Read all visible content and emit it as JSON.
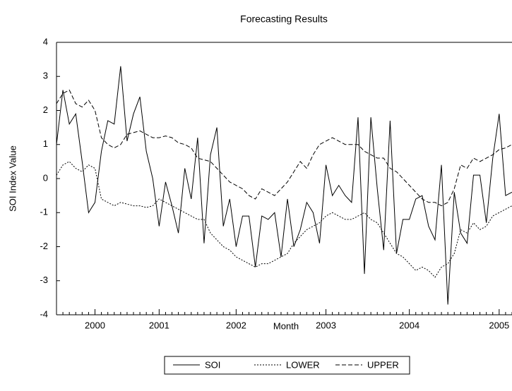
{
  "chart_data": {
    "type": "line",
    "title": "Forecasting Results",
    "xlabel": "Month",
    "ylabel": "SOI Index Value",
    "categories": [
      null,
      null,
      null,
      null,
      null,
      null,
      "2000",
      null,
      null,
      null,
      null,
      null,
      null,
      null,
      null,
      null,
      "2001",
      null,
      null,
      null,
      null,
      null,
      null,
      null,
      null,
      null,
      null,
      null,
      "2002",
      null,
      null,
      null,
      null,
      null,
      null,
      null,
      null,
      null,
      null,
      null,
      null,
      null,
      "2003",
      null,
      null,
      null,
      null,
      null,
      null,
      null,
      null,
      null,
      null,
      null,
      null,
      "2004",
      null,
      null,
      null,
      null,
      null,
      null,
      null,
      null,
      null,
      null,
      null,
      null,
      null,
      "2005",
      null,
      null
    ],
    "series": [
      {
        "name": "SOI",
        "color": "#000000",
        "style": "solid",
        "values": [
          1.0,
          2.6,
          1.6,
          1.9,
          0.5,
          -1.0,
          -0.7,
          0.8,
          1.7,
          1.6,
          3.3,
          1.1,
          1.9,
          2.4,
          0.8,
          0.0,
          -1.4,
          -0.1,
          -0.8,
          -1.6,
          0.3,
          -0.6,
          1.2,
          -1.9,
          0.7,
          1.5,
          -1.4,
          -0.6,
          -2.0,
          -1.1,
          -1.1,
          -2.6,
          -1.1,
          -1.2,
          -1.0,
          -2.3,
          -0.6,
          -2.0,
          -1.5,
          -0.7,
          -1.0,
          -1.9,
          0.4,
          -0.5,
          -0.2,
          -0.5,
          -0.7,
          1.8,
          -2.8,
          1.8,
          -0.3,
          -2.1,
          1.7,
          -2.2,
          -1.2,
          -1.2,
          -0.6,
          -0.5,
          -1.4,
          -1.8,
          0.4,
          -3.7,
          -0.4,
          -1.6,
          -1.9,
          0.1,
          0.1,
          -1.3,
          0.6,
          1.9,
          -0.5,
          -0.4
        ]
      },
      {
        "name": "LOWER",
        "color": "#000000",
        "style": "dotted",
        "values": [
          0.1,
          0.4,
          0.5,
          0.3,
          0.2,
          0.4,
          0.3,
          -0.6,
          -0.7,
          -0.8,
          -0.7,
          -0.75,
          -0.8,
          -0.8,
          -0.85,
          -0.8,
          -0.6,
          -0.7,
          -0.8,
          -0.9,
          -1.0,
          -1.1,
          -1.2,
          -1.2,
          -1.6,
          -1.8,
          -2.0,
          -2.1,
          -2.3,
          -2.4,
          -2.5,
          -2.6,
          -2.5,
          -2.5,
          -2.4,
          -2.3,
          -2.2,
          -1.9,
          -1.7,
          -1.5,
          -1.4,
          -1.3,
          -1.1,
          -1.0,
          -1.1,
          -1.2,
          -1.2,
          -1.1,
          -1.0,
          -1.2,
          -1.3,
          -1.6,
          -1.9,
          -2.2,
          -2.3,
          -2.5,
          -2.7,
          -2.6,
          -2.7,
          -2.9,
          -2.6,
          -2.5,
          -2.2,
          -1.5,
          -1.6,
          -1.3,
          -1.5,
          -1.4,
          -1.1,
          -1.0,
          -0.9,
          -0.8
        ]
      },
      {
        "name": "UPPER",
        "color": "#000000",
        "style": "dashed",
        "values": [
          2.2,
          2.5,
          2.6,
          2.2,
          2.1,
          2.3,
          2.0,
          1.2,
          1.0,
          0.9,
          1.0,
          1.3,
          1.35,
          1.4,
          1.3,
          1.2,
          1.2,
          1.25,
          1.2,
          1.05,
          1.0,
          0.9,
          0.6,
          0.55,
          0.5,
          0.3,
          0.1,
          -0.1,
          -0.2,
          -0.3,
          -0.5,
          -0.6,
          -0.3,
          -0.4,
          -0.5,
          -0.3,
          -0.1,
          0.2,
          0.5,
          0.3,
          0.7,
          1.0,
          1.1,
          1.2,
          1.1,
          1.0,
          1.0,
          1.0,
          0.8,
          0.7,
          0.6,
          0.6,
          0.3,
          0.2,
          0.0,
          -0.2,
          -0.4,
          -0.6,
          -0.7,
          -0.7,
          -0.8,
          -0.7,
          -0.3,
          0.4,
          0.3,
          0.6,
          0.5,
          0.6,
          0.7,
          0.85,
          0.9,
          1.0
        ]
      }
    ],
    "ylim": [
      -4,
      4
    ],
    "yticks": [
      -4,
      -3,
      -2,
      -1,
      0,
      1,
      2,
      3,
      4
    ],
    "grid": false,
    "legend": "bottom"
  }
}
